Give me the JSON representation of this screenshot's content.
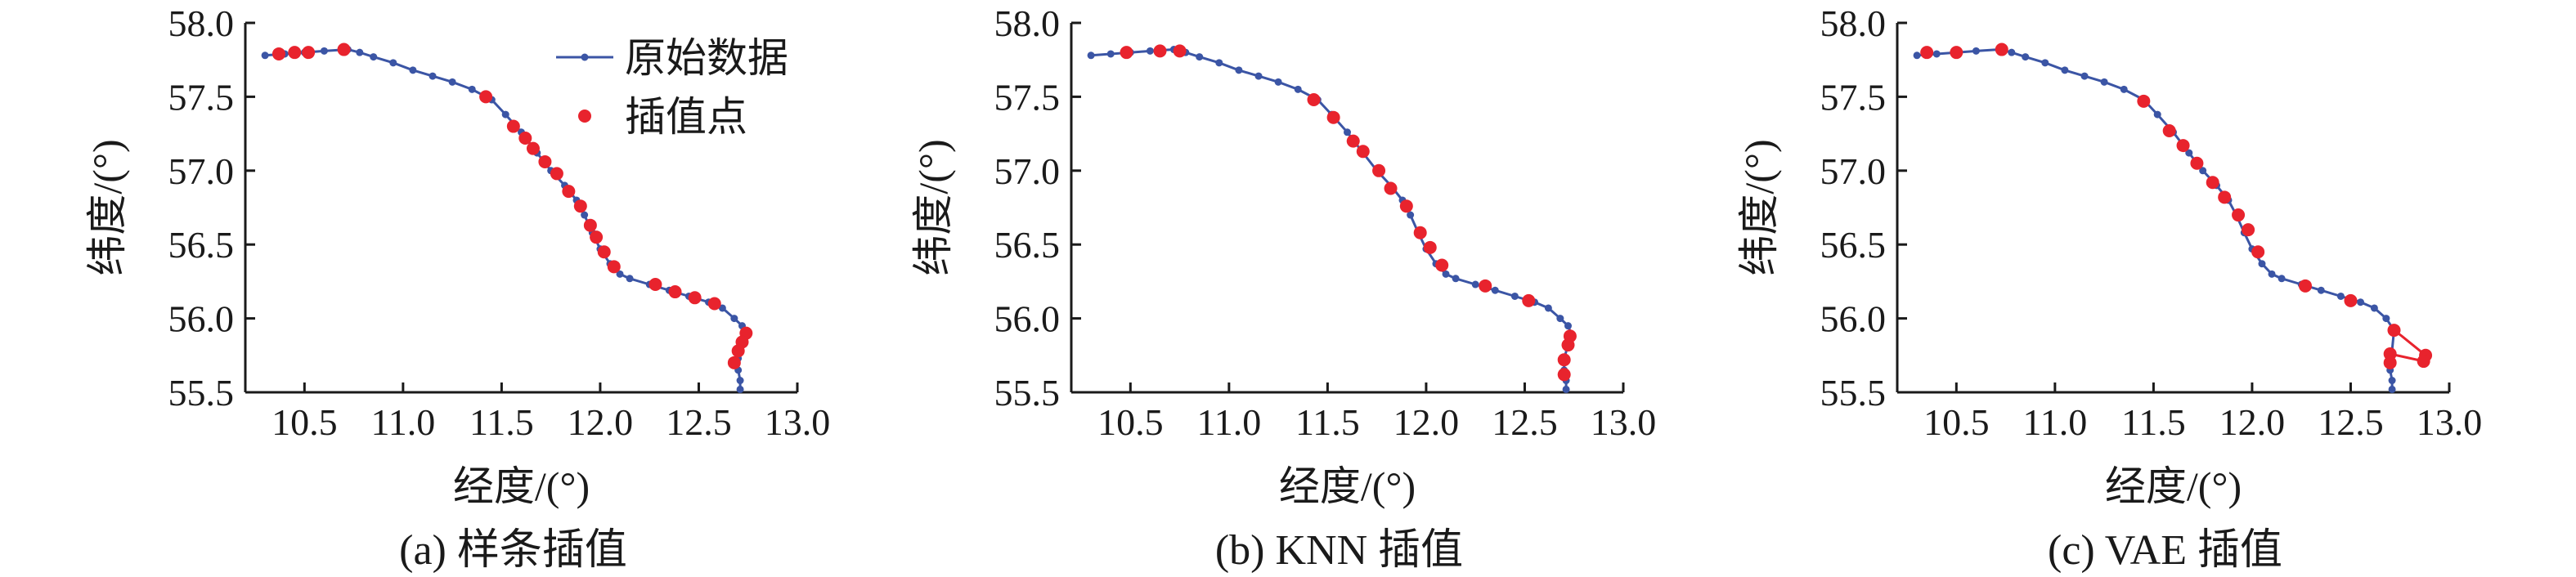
{
  "colors": {
    "original": "#3b55a5",
    "interp": "#e8232d",
    "axis": "#1a1a1a"
  },
  "legend": {
    "original": "原始数据",
    "interp": "插值点",
    "placement": "top-right"
  },
  "chart_data": [
    {
      "type": "line",
      "caption": "(a) 样条插值",
      "xlabel": "经度/(°)",
      "ylabel": "纬度/(°)",
      "xlim": [
        10.2,
        13.0
      ],
      "ylim": [
        55.5,
        58.0
      ],
      "xticks": [
        "10.5",
        "11.0",
        "11.5",
        "12.0",
        "12.5",
        "13.0"
      ],
      "yticks": [
        "55.5",
        "56.0",
        "56.5",
        "57.0",
        "57.5",
        "58.0"
      ],
      "show_legend": true,
      "series": [
        {
          "name": "原始数据",
          "x": [
            10.3,
            10.4,
            10.5,
            10.6,
            10.72,
            10.78,
            10.85,
            10.95,
            11.05,
            11.15,
            11.25,
            11.35,
            11.45,
            11.52,
            11.6,
            11.68,
            11.75,
            11.82,
            11.88,
            11.92,
            11.96,
            12.0,
            12.05,
            12.1,
            12.15,
            12.25,
            12.35,
            12.45,
            12.55,
            12.62,
            12.68,
            12.72,
            12.74,
            12.72,
            12.7,
            12.7,
            12.71,
            12.71
          ],
          "y": [
            57.78,
            57.79,
            57.8,
            57.81,
            57.82,
            57.8,
            57.77,
            57.73,
            57.68,
            57.64,
            57.6,
            57.55,
            57.48,
            57.38,
            57.26,
            57.12,
            57.0,
            56.9,
            56.8,
            56.7,
            56.58,
            56.47,
            56.37,
            56.3,
            56.27,
            56.23,
            56.19,
            56.15,
            56.11,
            56.07,
            56.0,
            55.95,
            55.88,
            55.82,
            55.73,
            55.65,
            55.58,
            55.52
          ]
        },
        {
          "name": "插值点",
          "x": [
            10.37,
            10.45,
            10.52,
            10.7,
            11.42,
            11.56,
            11.62,
            11.66,
            11.72,
            11.78,
            11.84,
            11.9,
            11.95,
            11.98,
            12.02,
            12.07,
            12.28,
            12.38,
            12.48,
            12.58,
            12.74,
            12.72,
            12.7,
            12.68
          ],
          "y": [
            57.79,
            57.8,
            57.8,
            57.82,
            57.5,
            57.3,
            57.22,
            57.15,
            57.06,
            56.98,
            56.86,
            56.76,
            56.63,
            56.55,
            56.45,
            56.35,
            56.23,
            56.18,
            56.14,
            56.1,
            55.9,
            55.84,
            55.78,
            55.7
          ]
        }
      ]
    },
    {
      "type": "line",
      "caption": "(b) KNN 插值",
      "xlabel": "经度/(°)",
      "ylabel": "纬度/(°)",
      "xlim": [
        10.2,
        13.0
      ],
      "ylim": [
        55.5,
        58.0
      ],
      "xticks": [
        "10.5",
        "11.0",
        "11.5",
        "12.0",
        "12.5",
        "13.0"
      ],
      "yticks": [
        "55.5",
        "56.0",
        "56.5",
        "57.0",
        "57.5",
        "58.0"
      ],
      "show_legend": false,
      "series": [
        {
          "name": "原始数据",
          "x": [
            10.3,
            10.4,
            10.5,
            10.6,
            10.72,
            10.78,
            10.85,
            10.95,
            11.05,
            11.15,
            11.25,
            11.35,
            11.45,
            11.52,
            11.6,
            11.68,
            11.75,
            11.82,
            11.88,
            11.92,
            11.96,
            12.0,
            12.05,
            12.1,
            12.15,
            12.25,
            12.35,
            12.45,
            12.55,
            12.62,
            12.68,
            12.72,
            12.74,
            12.72,
            12.7,
            12.7,
            12.71,
            12.71
          ],
          "y": [
            57.78,
            57.79,
            57.8,
            57.81,
            57.82,
            57.8,
            57.77,
            57.73,
            57.68,
            57.64,
            57.6,
            57.55,
            57.48,
            57.38,
            57.26,
            57.12,
            57.0,
            56.9,
            56.8,
            56.7,
            56.58,
            56.47,
            56.37,
            56.3,
            56.27,
            56.23,
            56.19,
            56.15,
            56.11,
            56.07,
            56.0,
            55.95,
            55.88,
            55.82,
            55.73,
            55.65,
            55.58,
            55.52
          ]
        },
        {
          "name": "插值点",
          "x": [
            10.48,
            10.65,
            10.75,
            11.43,
            11.53,
            11.63,
            11.68,
            11.76,
            11.82,
            11.9,
            11.97,
            12.02,
            12.08,
            12.3,
            12.52,
            12.73,
            12.72,
            12.7,
            12.7
          ],
          "y": [
            57.8,
            57.81,
            57.81,
            57.48,
            57.36,
            57.2,
            57.13,
            57.0,
            56.88,
            56.76,
            56.58,
            56.48,
            56.36,
            56.22,
            56.12,
            55.88,
            55.82,
            55.72,
            55.62
          ]
        }
      ]
    },
    {
      "type": "line",
      "caption": "(c) VAE 插值",
      "xlabel": "经度/(°)",
      "ylabel": "纬度/(°)",
      "xlim": [
        10.2,
        13.0
      ],
      "ylim": [
        55.5,
        58.0
      ],
      "xticks": [
        "10.5",
        "11.0",
        "11.5",
        "12.0",
        "12.5",
        "13.0"
      ],
      "yticks": [
        "55.5",
        "56.0",
        "56.5",
        "57.0",
        "57.5",
        "58.0"
      ],
      "show_legend": false,
      "series": [
        {
          "name": "原始数据",
          "x": [
            10.3,
            10.4,
            10.5,
            10.6,
            10.72,
            10.78,
            10.85,
            10.95,
            11.05,
            11.15,
            11.25,
            11.35,
            11.45,
            11.52,
            11.6,
            11.68,
            11.75,
            11.82,
            11.88,
            11.92,
            11.96,
            12.0,
            12.05,
            12.1,
            12.15,
            12.25,
            12.35,
            12.45,
            12.55,
            12.62,
            12.68,
            12.72,
            12.7,
            12.71,
            12.71
          ],
          "y": [
            57.78,
            57.79,
            57.8,
            57.81,
            57.82,
            57.8,
            57.77,
            57.73,
            57.68,
            57.64,
            57.6,
            57.55,
            57.48,
            57.38,
            57.26,
            57.12,
            57.0,
            56.9,
            56.8,
            56.7,
            56.58,
            56.47,
            56.37,
            56.3,
            56.27,
            56.23,
            56.19,
            56.15,
            56.11,
            56.07,
            56.0,
            55.92,
            55.65,
            55.58,
            55.52
          ]
        },
        {
          "name": "插值点",
          "x": [
            10.35,
            10.5,
            10.73,
            11.45,
            11.58,
            11.65,
            11.72,
            11.8,
            11.86,
            11.93,
            11.98,
            12.03,
            12.27,
            12.5,
            12.72,
            12.88,
            12.87,
            12.7,
            12.7
          ],
          "y": [
            57.8,
            57.8,
            57.82,
            57.47,
            57.27,
            57.17,
            57.05,
            56.92,
            56.82,
            56.7,
            56.6,
            56.45,
            56.22,
            56.12,
            55.92,
            55.75,
            55.71,
            55.76,
            55.7
          ]
        }
      ]
    }
  ]
}
